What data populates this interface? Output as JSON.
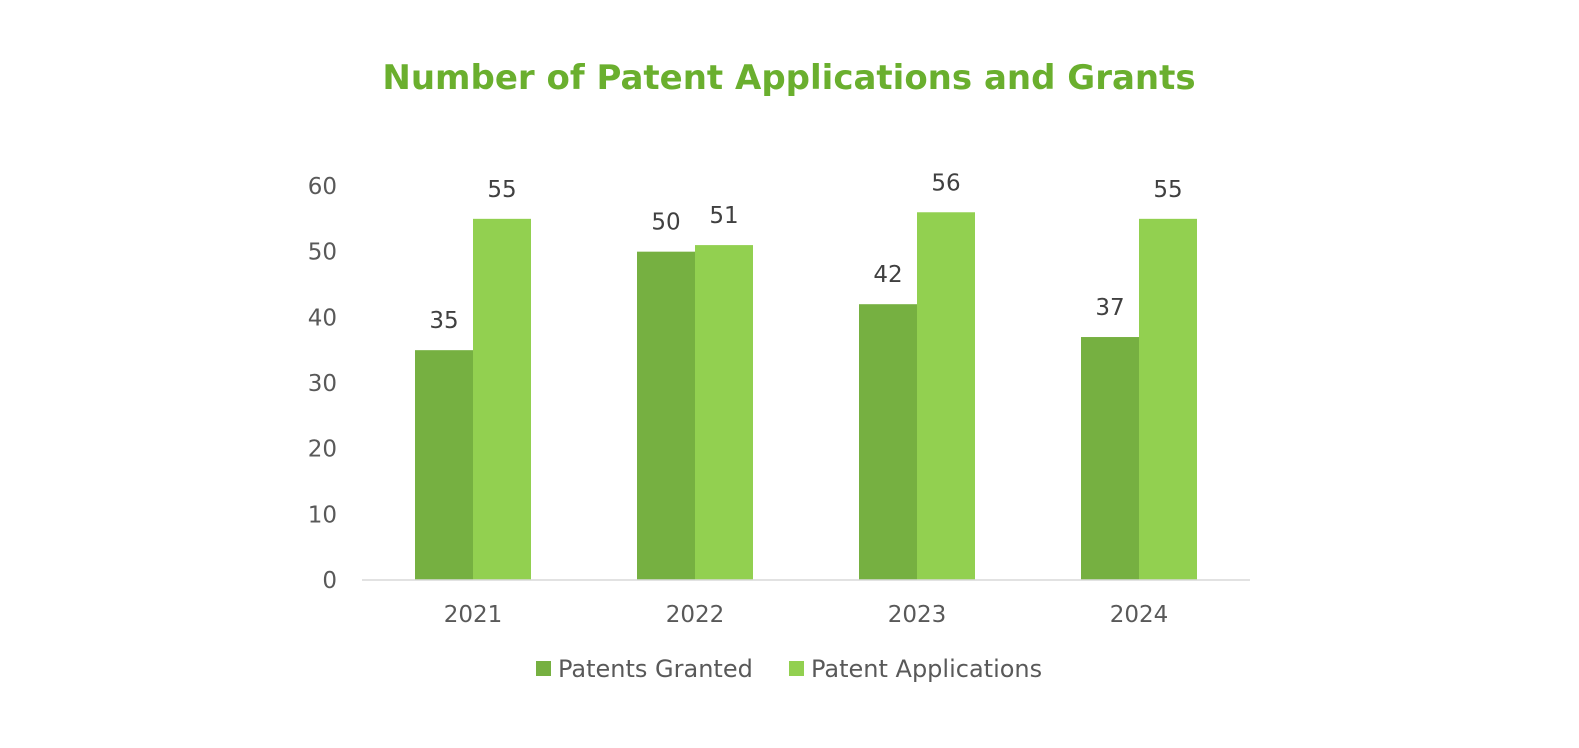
{
  "chart_data": {
    "type": "bar",
    "title": "Number of Patent Applications and Grants",
    "categories": [
      "2021",
      "2022",
      "2023",
      "2024"
    ],
    "series": [
      {
        "name": "Patents Granted",
        "values": [
          35,
          50,
          42,
          37
        ],
        "color": "#76B041"
      },
      {
        "name": "Patent Applications",
        "values": [
          55,
          51,
          56,
          55
        ],
        "color": "#92D050"
      }
    ],
    "xlabel": "",
    "ylabel": "",
    "ylim": [
      0,
      60
    ],
    "yticks": [
      0,
      10,
      20,
      30,
      40,
      50,
      60
    ],
    "grid": false,
    "legend": "bottom",
    "data_labels": true
  },
  "colors": {
    "title": "#6AAF2E",
    "axis_line": "#D9D9D9",
    "tick_text": "#595959",
    "label_text": "#404040"
  }
}
